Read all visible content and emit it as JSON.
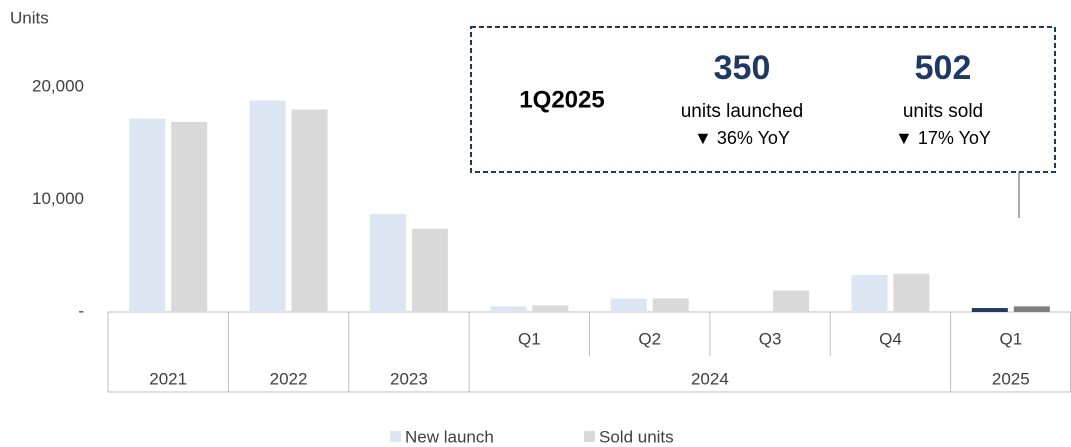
{
  "chart_data": {
    "type": "bar",
    "y_label": "Units",
    "categories": [
      null,
      null,
      null,
      "Q1",
      "Q2",
      "Q3",
      "Q4",
      "Q1"
    ],
    "category_groups": [
      {
        "name": "2021",
        "count": 1
      },
      {
        "name": "2022",
        "count": 1
      },
      {
        "name": "2023",
        "count": 1
      },
      {
        "name": "2024",
        "count": 4
      },
      {
        "name": "2025",
        "count": 1
      }
    ],
    "series": [
      {
        "name": "New launch",
        "color": "#dce6f2",
        "colors": [
          "#dce6f2",
          "#dce6f2",
          "#dce6f2",
          "#dce6f2",
          "#dce6f2",
          "#dce6f2",
          "#dce6f2",
          "#1f3864"
        ],
        "values": [
          17200,
          18800,
          8700,
          500,
          1200,
          100,
          3300,
          350
        ]
      },
      {
        "name": "Sold units",
        "color": "#d9d9d9",
        "colors": [
          "#d9d9d9",
          "#d9d9d9",
          "#d9d9d9",
          "#d9d9d9",
          "#d9d9d9",
          "#d9d9d9",
          "#d9d9d9",
          "#7f7f7f"
        ],
        "values": [
          16900,
          18000,
          7400,
          600,
          1200,
          1900,
          3400,
          502
        ]
      }
    ],
    "ylim": [
      0,
      22000
    ],
    "yticks": [
      {
        "value": 0,
        "label": "-"
      },
      {
        "value": 10000,
        "label": "10,000"
      },
      {
        "value": 20000,
        "label": "20,000"
      }
    ],
    "grid": false,
    "legend": "bottom",
    "annotation": {
      "period": "1Q2025",
      "kpis": [
        {
          "value": "350",
          "label": "units launched",
          "change": "▼ 36% YoY"
        },
        {
          "value": "502",
          "label": "units sold",
          "change": "▼ 17% YoY"
        }
      ]
    }
  }
}
